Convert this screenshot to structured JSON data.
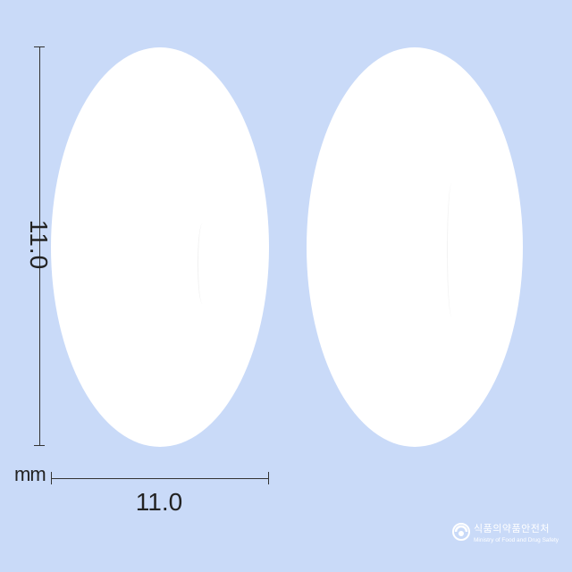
{
  "dimensions": {
    "height_value": "11.0",
    "width_value": "11.0",
    "unit": "mm"
  },
  "brand": {
    "korean": "식품의약품안전처",
    "english": "Ministry of Food and Drug Safety"
  },
  "colors": {
    "background": "#c9daf8",
    "pill": "#ffffff",
    "dimension_lines": "#333333"
  }
}
